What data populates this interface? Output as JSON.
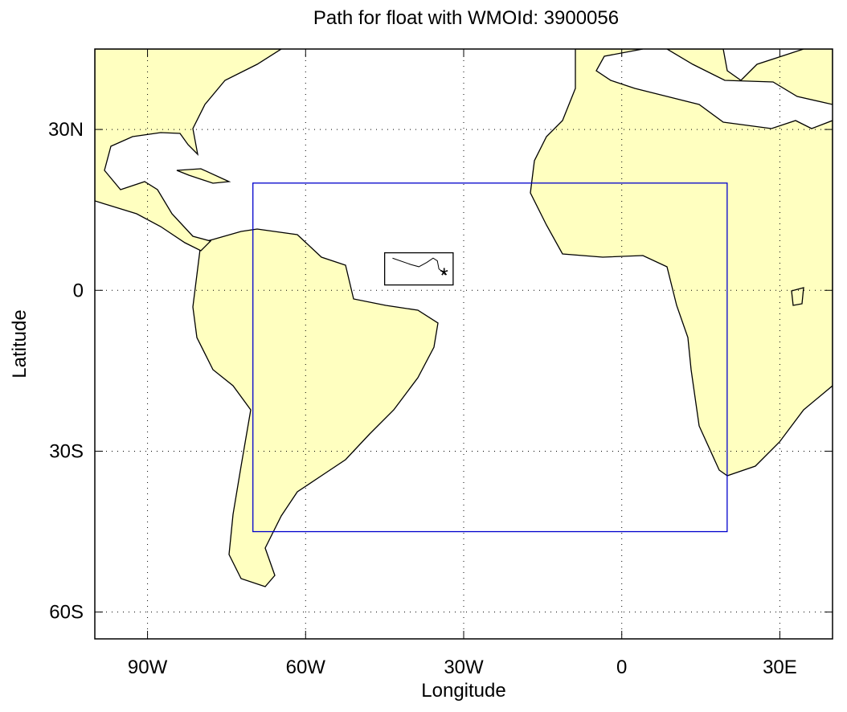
{
  "chart_data": {
    "type": "map",
    "title": "Path for float with WMOId: 3900056",
    "x_label": "Longitude",
    "y_label": "Latitude",
    "xlim": [
      -100,
      40
    ],
    "ylim": [
      -65,
      45
    ],
    "xticks": [
      {
        "value": -90,
        "label": "90W"
      },
      {
        "value": -60,
        "label": "60W"
      },
      {
        "value": -30,
        "label": "30W"
      },
      0,
      {
        "value": 30,
        "label": "30E"
      }
    ],
    "yticks": [
      {
        "value": 30,
        "label": "30N"
      },
      0,
      {
        "value": -30,
        "label": "30S"
      },
      {
        "value": -60,
        "label": "60S"
      }
    ],
    "grid": true,
    "land_color": "#ffffc0",
    "region": {
      "lon": [
        -70,
        20
      ],
      "lat": [
        -45,
        20
      ],
      "color": "#0000cc"
    },
    "inset_box": {
      "lon": [
        -45,
        -32
      ],
      "lat": [
        1,
        7
      ]
    },
    "path": {
      "lon": [
        -43.5,
        -40,
        -38.5,
        -37,
        -35.8,
        -35,
        -34.7,
        -33.5,
        -33.7
      ],
      "lat": [
        6,
        4.8,
        4.4,
        5.2,
        6,
        5.5,
        4,
        3,
        3
      ]
    }
  }
}
